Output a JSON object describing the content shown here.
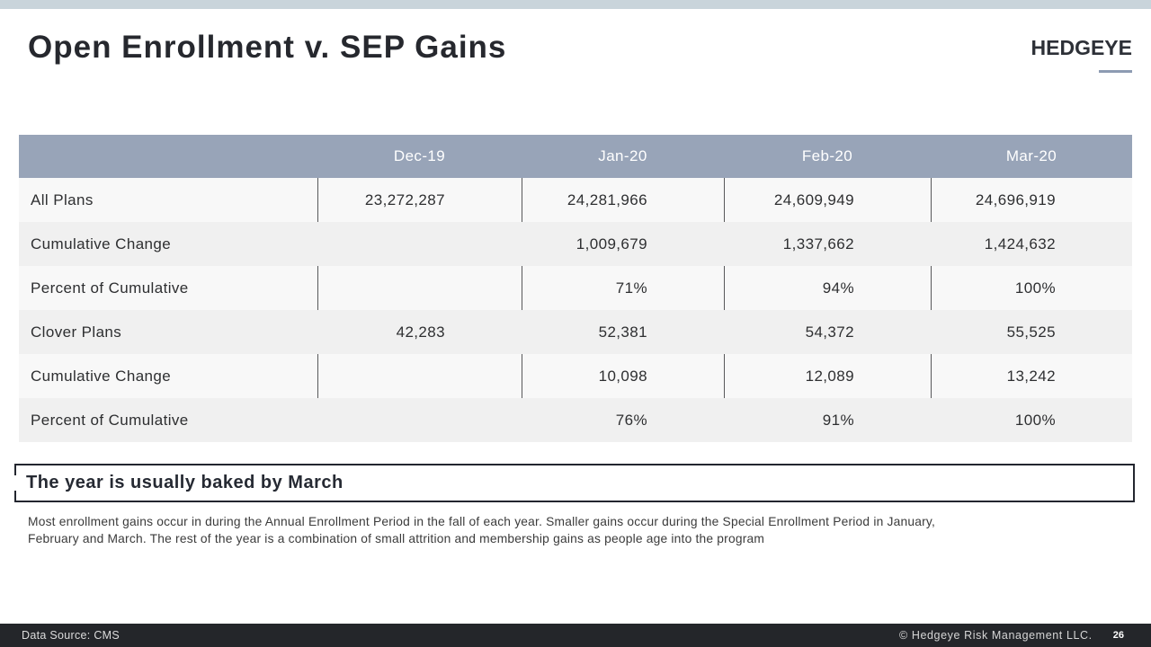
{
  "slide": {
    "title": "Open Enrollment v. SEP Gains",
    "logo_text": "HEDGEYE"
  },
  "table": {
    "header": {
      "label": "",
      "cols": [
        "Dec-19",
        "Jan-20",
        "Feb-20",
        "Mar-20"
      ]
    },
    "rows": [
      {
        "label": "All Plans",
        "values": [
          "23,272,287",
          "24,281,966",
          "24,609,949",
          "24,696,919"
        ]
      },
      {
        "label": "Cumulative Change",
        "values": [
          "",
          "1,009,679",
          "1,337,662",
          "1,424,632"
        ]
      },
      {
        "label": "Percent of Cumulative",
        "values": [
          "",
          "71%",
          "94%",
          "100%"
        ]
      },
      {
        "label": "Clover Plans",
        "values": [
          "42,283",
          "52,381",
          "54,372",
          "55,525"
        ]
      },
      {
        "label": "Cumulative Change",
        "values": [
          "",
          "10,098",
          "12,089",
          "13,242"
        ]
      },
      {
        "label": "Percent of Cumulative",
        "values": [
          "",
          "76%",
          "91%",
          "100%"
        ]
      }
    ]
  },
  "callout": {
    "heading": "The year is usually baked by March"
  },
  "notes": {
    "line1": "Most enrollment gains occur in during the Annual Enrollment Period in the fall of each year. Smaller gains occur during the Special Enrollment Period in January,",
    "line2": "February and March. The rest of the year is a combination of small attrition and membership gains as people age into the program"
  },
  "footer": {
    "data_source": "Data Source: CMS",
    "copyright": "© Hedgeye Risk Management LLC.",
    "page_number": "26"
  },
  "colors": {
    "table_header_bg": "#98a4b8",
    "row_light_bg": "#f8f8f8",
    "row_shade_bg": "#f0f0f0",
    "top_strip": "#c9d4db",
    "footer_bg": "#24262a",
    "logo_underline": "#8d9bb2"
  }
}
